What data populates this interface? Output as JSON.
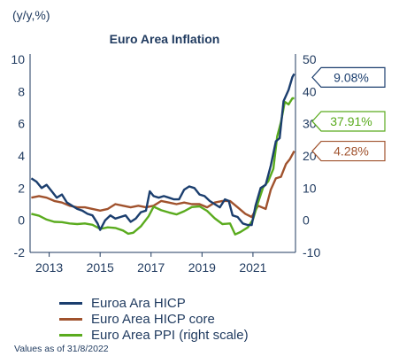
{
  "chart_data": {
    "type": "line",
    "unit_label": "(y/y,%)",
    "title": "Euro Area Inflation",
    "x_ticks": [
      "2013",
      "2015",
      "2017",
      "2019",
      "2021"
    ],
    "y_left": {
      "ticks": [
        "10",
        "8",
        "6",
        "4",
        "2",
        "0",
        "-2"
      ],
      "ylim": [
        -2,
        10
      ]
    },
    "y_right": {
      "ticks": [
        "50",
        "40",
        "30",
        "20",
        "10",
        "0",
        "-10"
      ],
      "ylim": [
        -10,
        50
      ]
    },
    "x_range": [
      2012.25,
      2022.67
    ],
    "grid": false,
    "legend_position": "bottom-left",
    "series": [
      {
        "name": "Euroa Ara HICP",
        "color": "#1b3e6e",
        "axis": "left",
        "callout": "9.08%",
        "points": [
          [
            2012.3,
            2.6
          ],
          [
            2012.5,
            2.4
          ],
          [
            2012.7,
            2.0
          ],
          [
            2012.9,
            2.2
          ],
          [
            2013.1,
            1.8
          ],
          [
            2013.3,
            1.4
          ],
          [
            2013.5,
            1.6
          ],
          [
            2013.7,
            1.1
          ],
          [
            2013.9,
            0.9
          ],
          [
            2014.1,
            0.7
          ],
          [
            2014.3,
            0.6
          ],
          [
            2014.5,
            0.4
          ],
          [
            2014.7,
            0.3
          ],
          [
            2014.9,
            -0.2
          ],
          [
            2015.0,
            -0.6
          ],
          [
            2015.2,
            0.0
          ],
          [
            2015.4,
            0.3
          ],
          [
            2015.6,
            0.1
          ],
          [
            2015.8,
            0.2
          ],
          [
            2016.0,
            0.3
          ],
          [
            2016.2,
            -0.1
          ],
          [
            2016.4,
            0.1
          ],
          [
            2016.6,
            0.5
          ],
          [
            2016.8,
            0.6
          ],
          [
            2016.95,
            1.8
          ],
          [
            2017.1,
            1.5
          ],
          [
            2017.3,
            1.4
          ],
          [
            2017.5,
            1.5
          ],
          [
            2017.7,
            1.4
          ],
          [
            2017.9,
            1.3
          ],
          [
            2018.1,
            1.3
          ],
          [
            2018.3,
            1.9
          ],
          [
            2018.5,
            2.1
          ],
          [
            2018.7,
            2.0
          ],
          [
            2018.9,
            1.6
          ],
          [
            2019.1,
            1.5
          ],
          [
            2019.3,
            1.2
          ],
          [
            2019.5,
            1.0
          ],
          [
            2019.7,
            0.8
          ],
          [
            2019.9,
            1.3
          ],
          [
            2020.05,
            1.2
          ],
          [
            2020.2,
            0.3
          ],
          [
            2020.4,
            0.2
          ],
          [
            2020.6,
            -0.2
          ],
          [
            2020.8,
            -0.3
          ],
          [
            2020.95,
            -0.3
          ],
          [
            2021.1,
            0.9
          ],
          [
            2021.3,
            2.0
          ],
          [
            2021.5,
            2.2
          ],
          [
            2021.7,
            3.4
          ],
          [
            2021.9,
            4.9
          ],
          [
            2022.05,
            5.1
          ],
          [
            2022.2,
            7.4
          ],
          [
            2022.4,
            8.1
          ],
          [
            2022.55,
            8.9
          ],
          [
            2022.62,
            9.1
          ]
        ]
      },
      {
        "name": "Euro Area HICP core",
        "color": "#a0522d",
        "axis": "left",
        "callout": "4.28%",
        "points": [
          [
            2012.3,
            1.4
          ],
          [
            2012.6,
            1.5
          ],
          [
            2012.9,
            1.4
          ],
          [
            2013.2,
            1.2
          ],
          [
            2013.5,
            1.1
          ],
          [
            2013.8,
            0.9
          ],
          [
            2014.1,
            0.8
          ],
          [
            2014.4,
            0.8
          ],
          [
            2014.7,
            0.7
          ],
          [
            2015.0,
            0.6
          ],
          [
            2015.3,
            0.7
          ],
          [
            2015.6,
            1.0
          ],
          [
            2015.9,
            0.9
          ],
          [
            2016.2,
            0.8
          ],
          [
            2016.5,
            0.9
          ],
          [
            2016.8,
            0.8
          ],
          [
            2017.1,
            0.9
          ],
          [
            2017.4,
            1.2
          ],
          [
            2017.7,
            1.1
          ],
          [
            2018.0,
            1.0
          ],
          [
            2018.3,
            1.1
          ],
          [
            2018.6,
            1.0
          ],
          [
            2018.9,
            1.0
          ],
          [
            2019.2,
            0.8
          ],
          [
            2019.5,
            1.1
          ],
          [
            2019.8,
            1.2
          ],
          [
            2020.1,
            1.2
          ],
          [
            2020.4,
            0.8
          ],
          [
            2020.7,
            0.4
          ],
          [
            2020.95,
            0.2
          ],
          [
            2021.2,
            0.9
          ],
          [
            2021.5,
            0.7
          ],
          [
            2021.7,
            1.9
          ],
          [
            2021.9,
            2.6
          ],
          [
            2022.1,
            2.7
          ],
          [
            2022.3,
            3.5
          ],
          [
            2022.45,
            3.8
          ],
          [
            2022.62,
            4.3
          ]
        ]
      },
      {
        "name": "Euro Area PPI (right scale)",
        "color": "#5aab1e",
        "axis": "right",
        "callout": "37.91%",
        "points": [
          [
            2012.3,
            2.0
          ],
          [
            2012.6,
            1.4
          ],
          [
            2012.9,
            0.2
          ],
          [
            2013.2,
            -0.5
          ],
          [
            2013.5,
            -0.6
          ],
          [
            2013.8,
            -1.0
          ],
          [
            2014.1,
            -1.2
          ],
          [
            2014.4,
            -1.0
          ],
          [
            2014.7,
            -1.4
          ],
          [
            2015.0,
            -2.7
          ],
          [
            2015.3,
            -2.2
          ],
          [
            2015.6,
            -2.4
          ],
          [
            2015.9,
            -3.2
          ],
          [
            2016.1,
            -4.2
          ],
          [
            2016.3,
            -3.9
          ],
          [
            2016.6,
            -1.9
          ],
          [
            2016.9,
            1.2
          ],
          [
            2017.1,
            4.2
          ],
          [
            2017.4,
            3.1
          ],
          [
            2017.7,
            2.4
          ],
          [
            2018.0,
            1.8
          ],
          [
            2018.3,
            2.8
          ],
          [
            2018.6,
            4.1
          ],
          [
            2018.9,
            4.3
          ],
          [
            2019.2,
            2.9
          ],
          [
            2019.5,
            0.6
          ],
          [
            2019.8,
            -1.2
          ],
          [
            2020.1,
            -1.0
          ],
          [
            2020.3,
            -4.4
          ],
          [
            2020.5,
            -3.7
          ],
          [
            2020.8,
            -2.2
          ],
          [
            2021.0,
            0.2
          ],
          [
            2021.2,
            5.5
          ],
          [
            2021.4,
            10.2
          ],
          [
            2021.6,
            12.1
          ],
          [
            2021.8,
            16.0
          ],
          [
            2021.95,
            26.0
          ],
          [
            2022.1,
            30.5
          ],
          [
            2022.25,
            36.8
          ],
          [
            2022.4,
            36.0
          ],
          [
            2022.55,
            37.9
          ],
          [
            2022.62,
            37.9
          ]
        ]
      }
    ]
  },
  "footnote": "Values as of 31/8/2022"
}
